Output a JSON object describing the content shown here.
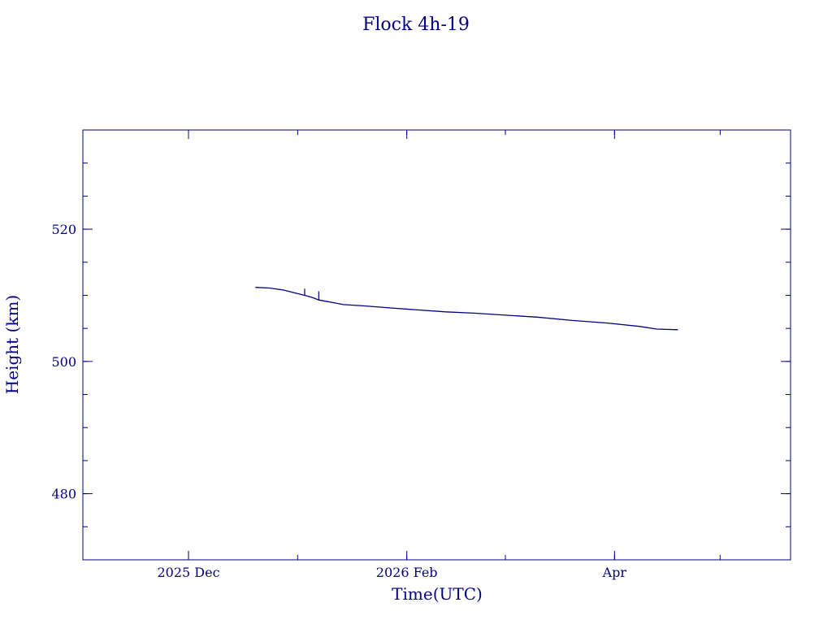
{
  "colors": {
    "ink": "#000080",
    "background": "#ffffff"
  },
  "chart_data": {
    "type": "line",
    "title": "Flock 4h-19",
    "xlabel": "Time(UTC)",
    "ylabel": "Height (km)",
    "xlim": [
      "2025-11-01",
      "2026-05-21"
    ],
    "ylim": [
      470,
      535
    ],
    "x_ticks": [
      {
        "date": "2025-12-01",
        "label": "2025 Dec"
      },
      {
        "date": "2026-02-01",
        "label": "2026 Feb"
      },
      {
        "date": "2026-04-01",
        "label": "Apr"
      }
    ],
    "x_minor_ticks": [
      "2025-11-01",
      "2025-12-01",
      "2026-01-01",
      "2026-02-01",
      "2026-03-01",
      "2026-04-01",
      "2026-05-01"
    ],
    "y_ticks": [
      480,
      500,
      520
    ],
    "y_minor_step": 5,
    "grid": false,
    "series": [
      {
        "points": [
          {
            "x": "2025-12-20",
            "y": 511.2
          },
          {
            "x": "2025-12-24",
            "y": 511.1
          },
          {
            "x": "2025-12-28",
            "y": 510.8
          },
          {
            "x": "2025-12-31",
            "y": 510.4
          },
          {
            "x": "2026-01-03",
            "y": 510.0
          },
          {
            "x": "2026-01-05",
            "y": 509.7
          },
          {
            "x": "2026-01-07",
            "y": 509.3
          },
          {
            "x": "2026-01-09",
            "y": 509.1
          },
          {
            "x": "2026-01-11",
            "y": 508.9
          },
          {
            "x": "2026-01-14",
            "y": 508.6
          },
          {
            "x": "2026-01-20",
            "y": 508.4
          },
          {
            "x": "2026-01-27",
            "y": 508.1
          },
          {
            "x": "2026-02-04",
            "y": 507.8
          },
          {
            "x": "2026-02-12",
            "y": 507.5
          },
          {
            "x": "2026-02-20",
            "y": 507.3
          },
          {
            "x": "2026-03-01",
            "y": 507.0
          },
          {
            "x": "2026-03-10",
            "y": 506.7
          },
          {
            "x": "2026-03-20",
            "y": 506.2
          },
          {
            "x": "2026-03-30",
            "y": 505.8
          },
          {
            "x": "2026-04-08",
            "y": 505.3
          },
          {
            "x": "2026-04-13",
            "y": 504.9
          },
          {
            "x": "2026-04-19",
            "y": 504.8
          }
        ],
        "spikes": [
          {
            "x": "2026-01-03",
            "y": 511.0
          },
          {
            "x": "2026-01-07",
            "y": 510.6
          }
        ]
      }
    ]
  }
}
